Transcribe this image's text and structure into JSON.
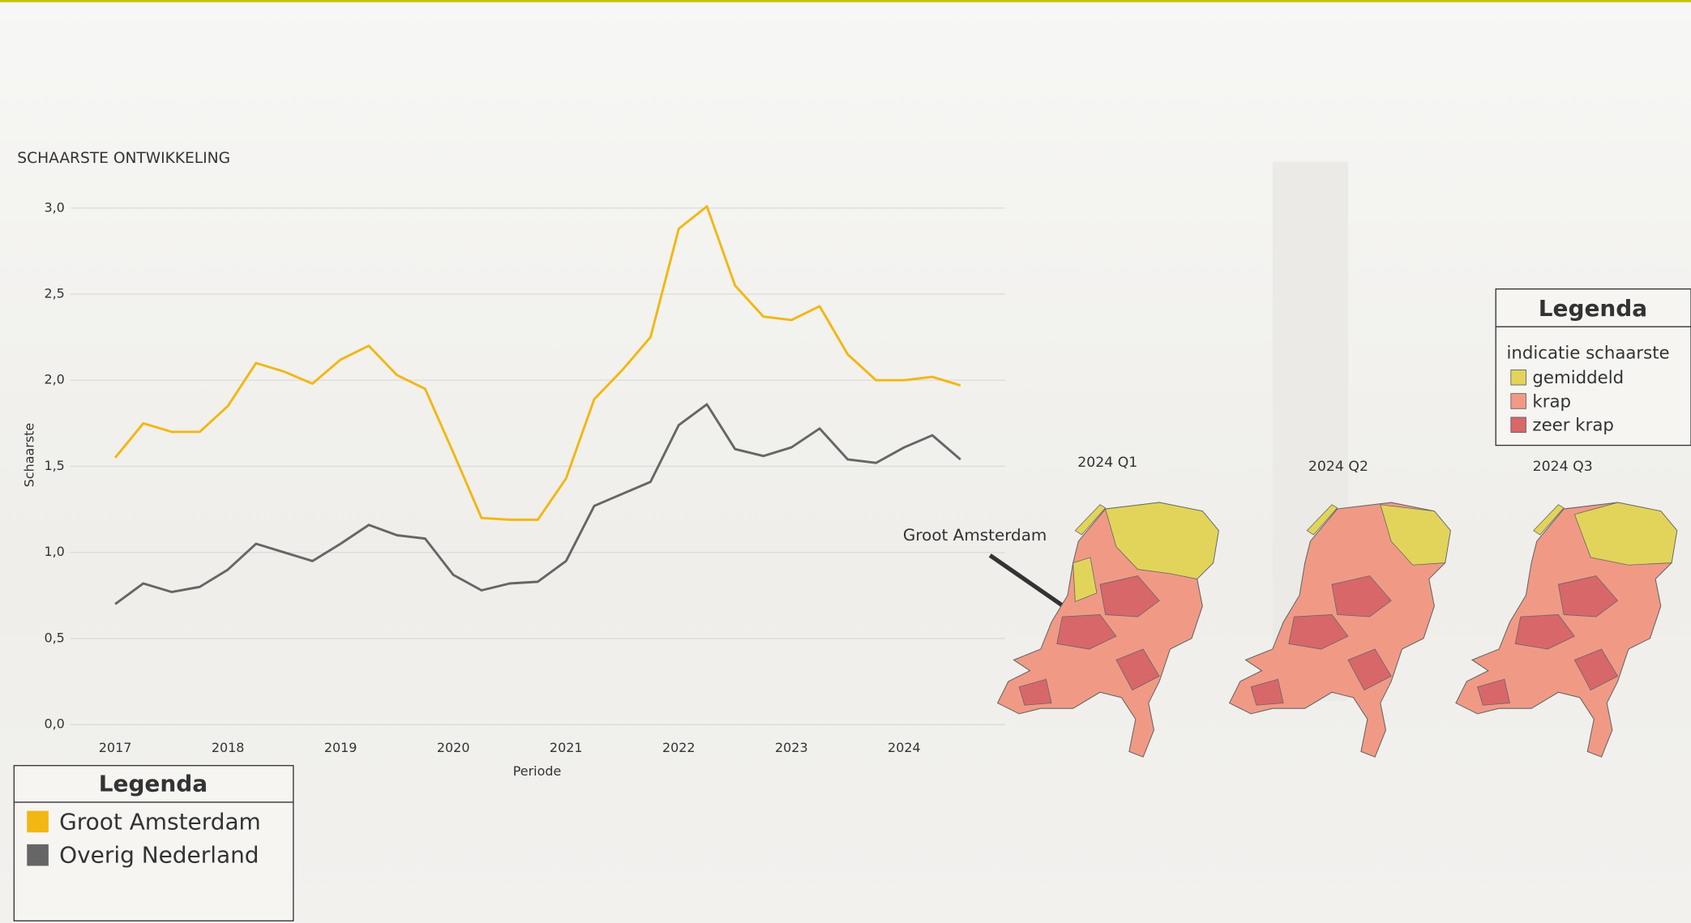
{
  "chart_data": {
    "type": "line",
    "title": "SCHAARSTE ONTWIKKELING",
    "x_label": "Periode",
    "y_label": "Schaarste",
    "x": [
      2017,
      2017.25,
      2017.5,
      2017.75,
      2018,
      2018.25,
      2018.5,
      2018.75,
      2019,
      2019.25,
      2019.5,
      2019.75,
      2020,
      2020.25,
      2020.5,
      2020.75,
      2021,
      2021.25,
      2021.5,
      2021.75,
      2022,
      2022.25,
      2022.5,
      2022.75,
      2023,
      2023.25,
      2023.5,
      2023.75,
      2024,
      2024.25,
      2024.5
    ],
    "series": [
      {
        "name": "Groot Amsterdam",
        "color": "#f2b712",
        "values": [
          1.55,
          1.75,
          1.7,
          1.7,
          1.85,
          2.1,
          2.05,
          1.98,
          2.12,
          2.2,
          2.03,
          1.95,
          1.58,
          1.2,
          1.19,
          1.19,
          1.43,
          1.89,
          2.06,
          2.25,
          2.88,
          3.01,
          2.55,
          2.37,
          2.35,
          2.43,
          2.15,
          2.0,
          2.0,
          2.02,
          1.97
        ]
      },
      {
        "name": "Overig Nederland",
        "color": "#666666",
        "values": [
          0.7,
          0.82,
          0.77,
          0.8,
          0.9,
          1.05,
          1.0,
          0.95,
          1.05,
          1.16,
          1.1,
          1.08,
          0.87,
          0.78,
          0.82,
          0.83,
          0.95,
          1.27,
          1.34,
          1.41,
          1.74,
          1.86,
          1.6,
          1.56,
          1.61,
          1.72,
          1.54,
          1.52,
          1.61,
          1.68,
          1.54
        ]
      }
    ],
    "xlim": [
      2016.6,
      2024.8
    ],
    "xticks": [
      2017,
      2018,
      2019,
      2020,
      2021,
      2022,
      2023,
      2024
    ],
    "ylim": [
      0,
      3.1
    ],
    "yticks": [
      {
        "value": 0,
        "label": "0,0"
      },
      {
        "value": 0.5,
        "label": "0,5"
      },
      {
        "value": 1,
        "label": "1,0"
      },
      {
        "value": 1.5,
        "label": "1,5"
      },
      {
        "value": 2,
        "label": "2,0"
      },
      {
        "value": 2.5,
        "label": "2,5"
      },
      {
        "value": 3,
        "label": "3,0"
      }
    ],
    "grid": true,
    "legend_title": "Legenda",
    "legend": "bottom-left"
  },
  "maps": {
    "annotation": "Groot Amsterdam",
    "panels": [
      {
        "title": "2024 Q1"
      },
      {
        "title": "2024 Q2"
      },
      {
        "title": "2024 Q3"
      }
    ],
    "legend": {
      "title": "Legenda",
      "subtitle": "indicatie schaarste",
      "items": [
        {
          "label": "gemiddeld",
          "color": "#e2d45a"
        },
        {
          "label": "krap",
          "color": "#f09a86"
        },
        {
          "label": "zeer krap",
          "color": "#d8676a"
        }
      ]
    }
  }
}
